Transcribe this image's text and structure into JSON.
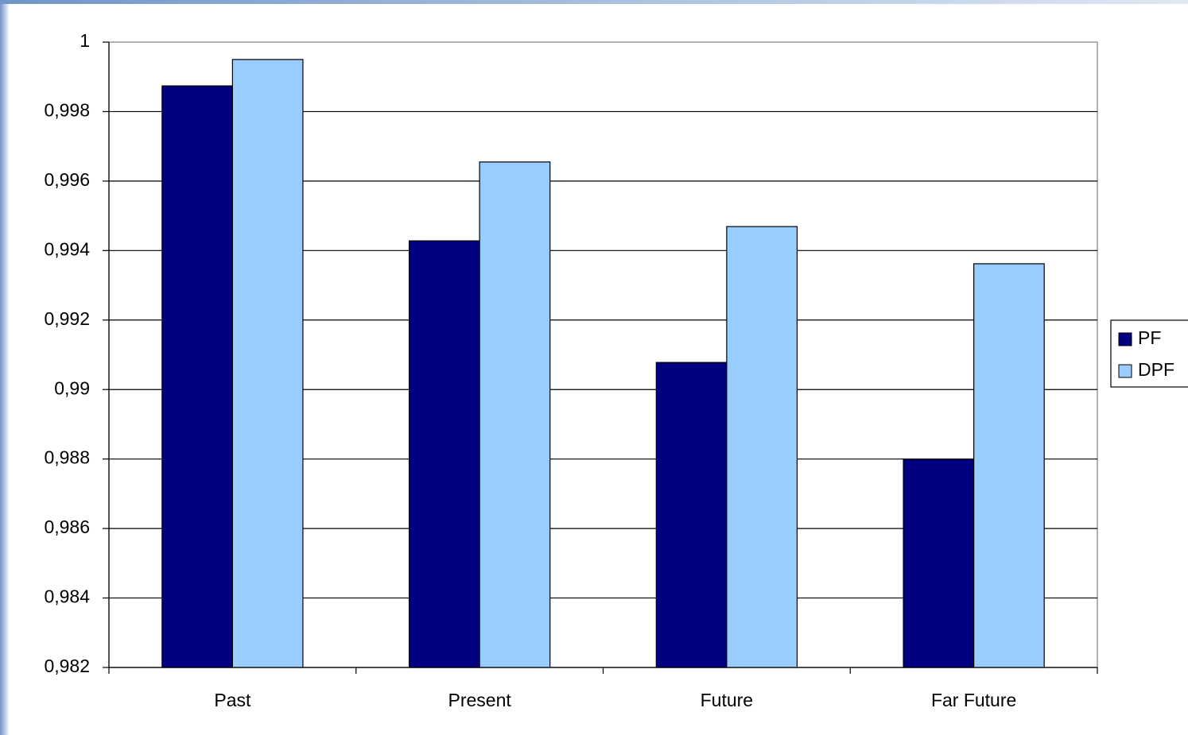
{
  "chart_data": {
    "type": "bar",
    "categories": [
      "Past",
      "Present",
      "Future",
      "Far Future"
    ],
    "series": [
      {
        "name": "PF",
        "color": "#000080",
        "values": [
          0.99874,
          0.99428,
          0.99078,
          0.98799
        ]
      },
      {
        "name": "DPF",
        "color": "#99ccff",
        "values": [
          0.9995,
          0.99655,
          0.99469,
          0.99362
        ]
      }
    ],
    "ylim": [
      0.982,
      1
    ],
    "yticks": [
      {
        "value": 0.982,
        "label": "0,982"
      },
      {
        "value": 0.984,
        "label": "0,984"
      },
      {
        "value": 0.986,
        "label": "0,986"
      },
      {
        "value": 0.988,
        "label": "0,988"
      },
      {
        "value": 0.99,
        "label": "0,99"
      },
      {
        "value": 0.992,
        "label": "0,992"
      },
      {
        "value": 0.994,
        "label": "0,994"
      },
      {
        "value": 0.996,
        "label": "0,996"
      },
      {
        "value": 0.998,
        "label": "0,998"
      },
      1
    ],
    "grid": true,
    "legend": "right"
  }
}
